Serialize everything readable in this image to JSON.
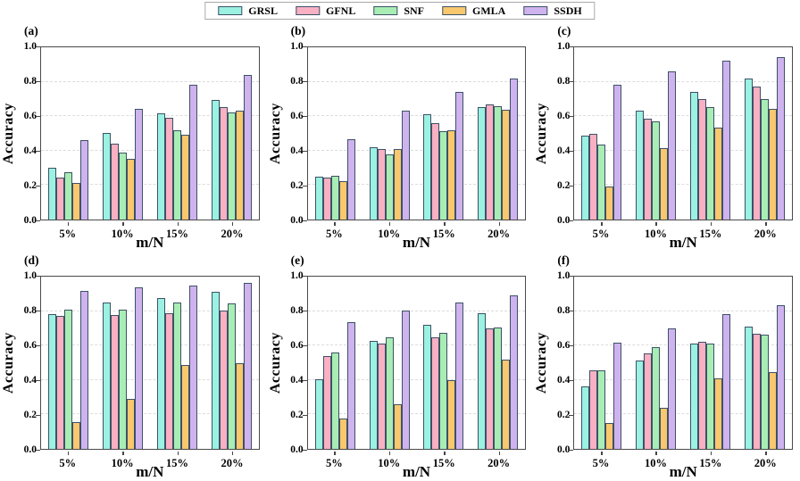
{
  "figure": {
    "background": "#ffffff",
    "legend": {
      "position": "top-center",
      "edge_color": "#3D5166",
      "items": [
        {
          "label": "GRSL",
          "color": "#9BF1E2"
        },
        {
          "label": "GFNL",
          "color": "#F9B0C3"
        },
        {
          "label": "SNF",
          "color": "#A8EEB4"
        },
        {
          "label": "GMLA",
          "color": "#F8C76E"
        },
        {
          "label": "SSDH",
          "color": "#CFB3EF"
        }
      ]
    }
  },
  "chart_data": [
    {
      "type": "bar",
      "panel": "(a)",
      "title": "",
      "xlabel": "m/N",
      "ylabel": "Accuracy",
      "categories": [
        "5%",
        "10%",
        "15%",
        "20%"
      ],
      "ylim": [
        0.0,
        1.0
      ],
      "y_ticks": [
        "0.0",
        "0.2",
        "0.4",
        "0.6",
        "0.8",
        "1.0"
      ],
      "grid": "horizontal-dashed",
      "legend_position": "figure-top",
      "series": [
        {
          "name": "GRSL",
          "values": [
            0.3,
            0.505,
            0.615,
            0.695
          ]
        },
        {
          "name": "GFNL",
          "values": [
            0.245,
            0.44,
            0.59,
            0.655
          ]
        },
        {
          "name": "SNF",
          "values": [
            0.275,
            0.39,
            0.52,
            0.62
          ]
        },
        {
          "name": "GMLA",
          "values": [
            0.21,
            0.355,
            0.49,
            0.63
          ]
        },
        {
          "name": "SSDH",
          "values": [
            0.46,
            0.645,
            0.78,
            0.84
          ]
        }
      ]
    },
    {
      "type": "bar",
      "panel": "(b)",
      "title": "",
      "xlabel": "m/N",
      "ylabel": "Accuracy",
      "categories": [
        "5%",
        "10%",
        "15%",
        "20%"
      ],
      "ylim": [
        0.0,
        1.0
      ],
      "y_ticks": [
        "0.0",
        "0.2",
        "0.4",
        "0.6",
        "0.8",
        "1.0"
      ],
      "grid": "horizontal-dashed",
      "legend_position": "figure-top",
      "series": [
        {
          "name": "GRSL",
          "values": [
            0.25,
            0.42,
            0.61,
            0.655
          ]
        },
        {
          "name": "GFNL",
          "values": [
            0.245,
            0.41,
            0.56,
            0.67
          ]
        },
        {
          "name": "SNF",
          "values": [
            0.255,
            0.38,
            0.515,
            0.66
          ]
        },
        {
          "name": "GMLA",
          "values": [
            0.225,
            0.41,
            0.52,
            0.635
          ]
        },
        {
          "name": "SSDH",
          "values": [
            0.465,
            0.63,
            0.74,
            0.82
          ]
        }
      ]
    },
    {
      "type": "bar",
      "panel": "(c)",
      "title": "",
      "xlabel": "m/N",
      "ylabel": "Accuracy",
      "categories": [
        "5%",
        "10%",
        "15%",
        "20%"
      ],
      "ylim": [
        0.0,
        1.0
      ],
      "y_ticks": [
        "0.0",
        "0.2",
        "0.4",
        "0.6",
        "0.8",
        "1.0"
      ],
      "grid": "horizontal-dashed",
      "legend_position": "figure-top",
      "series": [
        {
          "name": "GRSL",
          "values": [
            0.485,
            0.63,
            0.74,
            0.82
          ]
        },
        {
          "name": "GFNL",
          "values": [
            0.5,
            0.585,
            0.7,
            0.77
          ]
        },
        {
          "name": "SNF",
          "values": [
            0.435,
            0.57,
            0.655,
            0.7
          ]
        },
        {
          "name": "GMLA",
          "values": [
            0.19,
            0.415,
            0.535,
            0.64
          ]
        },
        {
          "name": "SSDH",
          "values": [
            0.785,
            0.86,
            0.92,
            0.945
          ]
        }
      ]
    },
    {
      "type": "bar",
      "panel": "(d)",
      "title": "",
      "xlabel": "m/N",
      "ylabel": "Accuracy",
      "categories": [
        "5%",
        "10%",
        "15%",
        "20%"
      ],
      "ylim": [
        0.0,
        1.0
      ],
      "y_ticks": [
        "0.0",
        "0.2",
        "0.4",
        "0.6",
        "0.8",
        "1.0"
      ],
      "grid": "horizontal-dashed",
      "legend_position": "figure-top",
      "series": [
        {
          "name": "GRSL",
          "values": [
            0.78,
            0.85,
            0.875,
            0.91
          ]
        },
        {
          "name": "GFNL",
          "values": [
            0.77,
            0.775,
            0.79,
            0.805
          ]
        },
        {
          "name": "SNF",
          "values": [
            0.81,
            0.81,
            0.85,
            0.845
          ]
        },
        {
          "name": "GMLA",
          "values": [
            0.155,
            0.29,
            0.485,
            0.5
          ]
        },
        {
          "name": "SSDH",
          "values": [
            0.915,
            0.94,
            0.95,
            0.965
          ]
        }
      ]
    },
    {
      "type": "bar",
      "panel": "(e)",
      "title": "",
      "xlabel": "m/N",
      "ylabel": "Accuracy",
      "categories": [
        "5%",
        "10%",
        "15%",
        "20%"
      ],
      "ylim": [
        0.0,
        1.0
      ],
      "y_ticks": [
        "0.0",
        "0.2",
        "0.4",
        "0.6",
        "0.8",
        "1.0"
      ],
      "grid": "horizontal-dashed",
      "legend_position": "figure-top",
      "series": [
        {
          "name": "GRSL",
          "values": [
            0.405,
            0.625,
            0.72,
            0.79
          ]
        },
        {
          "name": "GFNL",
          "values": [
            0.54,
            0.61,
            0.65,
            0.7
          ]
        },
        {
          "name": "SNF",
          "values": [
            0.56,
            0.65,
            0.675,
            0.705
          ]
        },
        {
          "name": "GMLA",
          "values": [
            0.175,
            0.26,
            0.4,
            0.52
          ]
        },
        {
          "name": "SSDH",
          "values": [
            0.735,
            0.805,
            0.85,
            0.89
          ]
        }
      ]
    },
    {
      "type": "bar",
      "panel": "(f)",
      "title": "",
      "xlabel": "m/N",
      "ylabel": "Accuracy",
      "categories": [
        "5%",
        "10%",
        "15%",
        "20%"
      ],
      "ylim": [
        0.0,
        1.0
      ],
      "y_ticks": [
        "0.0",
        "0.2",
        "0.4",
        "0.6",
        "0.8",
        "1.0"
      ],
      "grid": "horizontal-dashed",
      "legend_position": "figure-top",
      "series": [
        {
          "name": "GRSL",
          "values": [
            0.365,
            0.515,
            0.61,
            0.71
          ]
        },
        {
          "name": "GFNL",
          "values": [
            0.455,
            0.555,
            0.62,
            0.67
          ]
        },
        {
          "name": "SNF",
          "values": [
            0.455,
            0.59,
            0.61,
            0.665
          ]
        },
        {
          "name": "GMLA",
          "values": [
            0.15,
            0.24,
            0.41,
            0.445
          ]
        },
        {
          "name": "SSDH",
          "values": [
            0.615,
            0.7,
            0.78,
            0.835
          ]
        }
      ]
    }
  ]
}
